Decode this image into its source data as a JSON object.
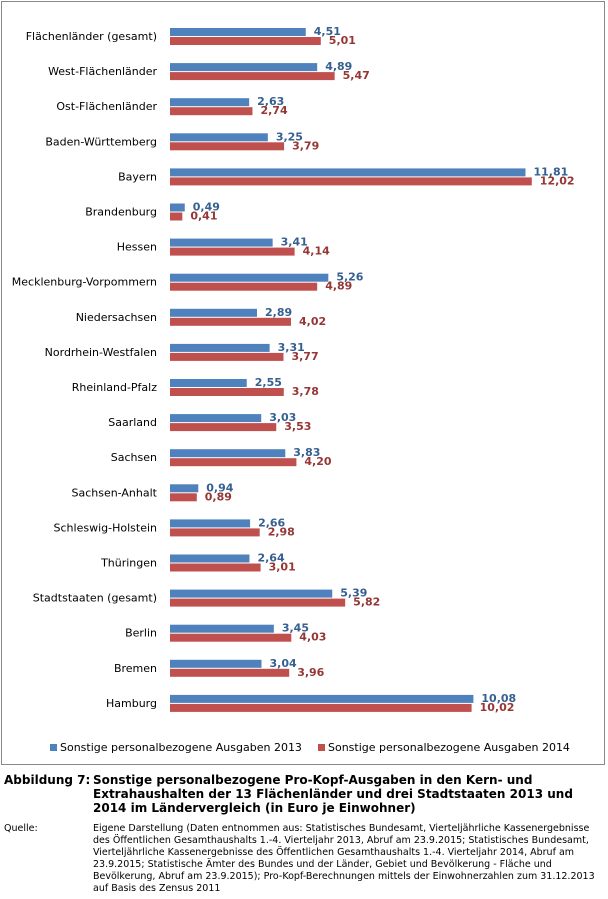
{
  "chart_data": {
    "type": "bar",
    "orientation": "horizontal",
    "categories": [
      "Flächenländer (gesamt)",
      "West-Flächenländer",
      "Ost-Flächenländer",
      "Baden-Württemberg",
      "Bayern",
      "Brandenburg",
      "Hessen",
      "Mecklenburg-Vorpommern",
      "Niedersachsen",
      "Nordrhein-Westfalen",
      "Rheinland-Pfalz",
      "Saarland",
      "Sachsen",
      "Sachsen-Anhalt",
      "Schleswig-Holstein",
      "Thüringen",
      "Stadtstaaten (gesamt)",
      "Berlin",
      "Bremen",
      "Hamburg"
    ],
    "series": [
      {
        "name": "Sonstige personalbezogene Ausgaben 2013",
        "color": "#4f81bd",
        "label_color": "#366092",
        "values": [
          4.51,
          4.89,
          2.63,
          3.25,
          11.81,
          0.49,
          3.41,
          5.26,
          2.89,
          3.31,
          2.55,
          3.03,
          3.83,
          0.94,
          2.66,
          2.64,
          5.39,
          3.45,
          3.04,
          10.08
        ],
        "value_labels": [
          "4,51",
          "4,89",
          "2,63",
          "3,25",
          "11,81",
          "0,49",
          "3,41",
          "5,26",
          "2,89",
          "3,31",
          "2,55",
          "3,03",
          "3,83",
          "0,94",
          "2,66",
          "2,64",
          "5,39",
          "3,45",
          "3,04",
          "10,08"
        ]
      },
      {
        "name": "Sonstige personalbezogene Ausgaben 2014",
        "color": "#c0504d",
        "label_color": "#953735",
        "values": [
          5.01,
          5.47,
          2.74,
          3.79,
          12.02,
          0.41,
          4.14,
          4.89,
          4.02,
          3.77,
          3.78,
          3.53,
          4.2,
          0.89,
          2.98,
          3.01,
          5.82,
          4.03,
          3.96,
          10.02
        ],
        "value_labels": [
          "5,01",
          "5,47",
          "2,74",
          "3,79",
          "12,02",
          "0,41",
          "4,14",
          "4,89",
          "4,02",
          "3,77",
          "3,78",
          "3,53",
          "4,20",
          "0,89",
          "2,98",
          "3,01",
          "5,82",
          "4,03",
          "3,96",
          "10,02"
        ]
      }
    ],
    "legend": "bottom"
  },
  "caption": {
    "label": "Abbildung 7:",
    "text": "Sonstige personalbezogene Pro-Kopf-Ausgaben in den Kern- und Extrahaushalten der 13 Flächenländer und drei Stadtstaaten 2013 und 2014 im Ländervergleich (in Euro je Einwohner)"
  },
  "source": {
    "label": "Quelle:",
    "text": "Eigene Darstellung (Daten entnommen aus: Statistisches Bundesamt, Vierteljährliche Kassenergebnisse des Öffentlichen Gesamthaushalts 1.-4. Vierteljahr 2013, Abruf am 23.9.2015; Statistisches Bundesamt, Vierteljährliche Kassenergebnisse des Öffentlichen Gesamthaushalts 1.-4. Vierteljahr 2014, Abruf am 23.9.2015; Statistische Ämter des Bundes und der Länder, Gebiet und Bevölkerung - Fläche und Bevölkerung, Abruf am 23.9.2015); Pro-Kopf-Berechnungen mittels der Einwohnerzahlen zum 31.12.2013 auf Basis des Zensus 2011"
  }
}
